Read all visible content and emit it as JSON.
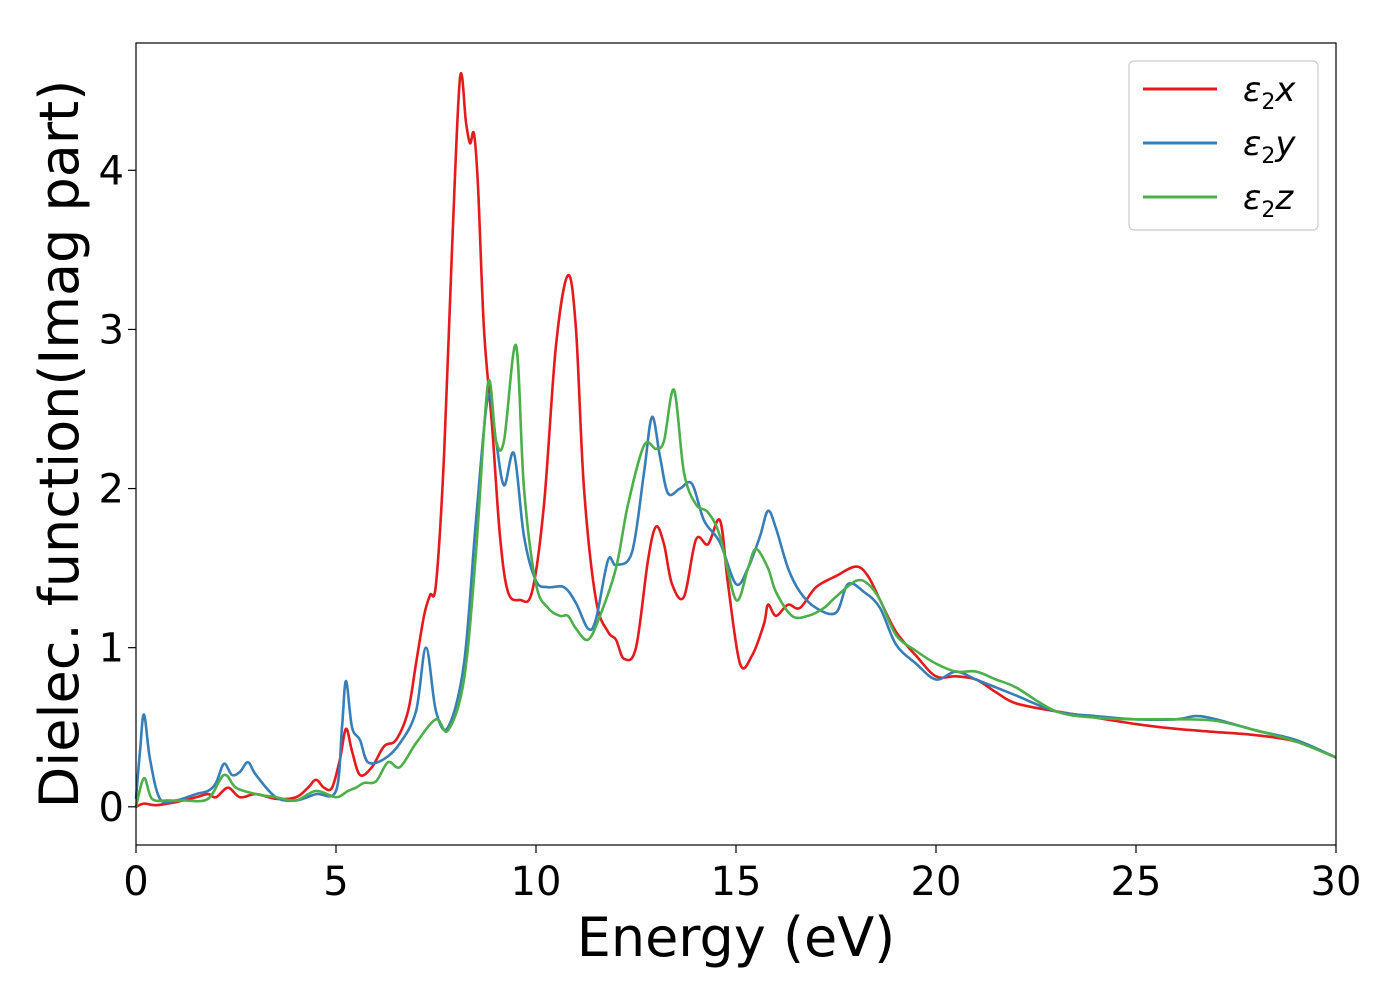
{
  "chart_data": {
    "type": "line",
    "xlabel": "Energy (eV)",
    "ylabel": "Dielec. function(Imag part)",
    "xlim": [
      0,
      30
    ],
    "ylim": [
      -0.24,
      4.8
    ],
    "xticks": [
      "0",
      "5",
      "10",
      "15",
      "20",
      "25",
      "30"
    ],
    "yticks": [
      "0",
      "1",
      "2",
      "3",
      "4"
    ],
    "grid": false,
    "legend_position": "top-right",
    "series": [
      {
        "name": "ε2x",
        "legend_main": "ε",
        "legend_sub": "2",
        "legend_tail": "x",
        "color": "#e41a1c",
        "points": [
          [
            0,
            0.0
          ],
          [
            0.2,
            0.02
          ],
          [
            0.5,
            0.01
          ],
          [
            1.0,
            0.03
          ],
          [
            1.5,
            0.06
          ],
          [
            1.8,
            0.08
          ],
          [
            2.0,
            0.06
          ],
          [
            2.3,
            0.12
          ],
          [
            2.6,
            0.06
          ],
          [
            3.0,
            0.08
          ],
          [
            3.5,
            0.05
          ],
          [
            4.0,
            0.06
          ],
          [
            4.3,
            0.12
          ],
          [
            4.5,
            0.17
          ],
          [
            4.7,
            0.12
          ],
          [
            4.9,
            0.12
          ],
          [
            5.1,
            0.3
          ],
          [
            5.25,
            0.49
          ],
          [
            5.4,
            0.35
          ],
          [
            5.6,
            0.2
          ],
          [
            5.9,
            0.25
          ],
          [
            6.2,
            0.38
          ],
          [
            6.5,
            0.42
          ],
          [
            6.8,
            0.6
          ],
          [
            7.0,
            0.9
          ],
          [
            7.2,
            1.2
          ],
          [
            7.35,
            1.33
          ],
          [
            7.5,
            1.4
          ],
          [
            7.7,
            2.2
          ],
          [
            7.9,
            3.5
          ],
          [
            8.1,
            4.58
          ],
          [
            8.25,
            4.3
          ],
          [
            8.35,
            4.17
          ],
          [
            8.45,
            4.23
          ],
          [
            8.55,
            3.9
          ],
          [
            8.7,
            3.0
          ],
          [
            8.9,
            2.4
          ],
          [
            9.1,
            1.7
          ],
          [
            9.3,
            1.35
          ],
          [
            9.6,
            1.3
          ],
          [
            9.9,
            1.35
          ],
          [
            10.2,
            1.9
          ],
          [
            10.5,
            2.9
          ],
          [
            10.8,
            3.34
          ],
          [
            11.0,
            3.0
          ],
          [
            11.2,
            2.0
          ],
          [
            11.5,
            1.3
          ],
          [
            11.8,
            1.1
          ],
          [
            12.0,
            1.05
          ],
          [
            12.2,
            0.93
          ],
          [
            12.5,
            1.0
          ],
          [
            12.8,
            1.55
          ],
          [
            13.0,
            1.76
          ],
          [
            13.2,
            1.65
          ],
          [
            13.4,
            1.4
          ],
          [
            13.7,
            1.32
          ],
          [
            14.0,
            1.68
          ],
          [
            14.3,
            1.65
          ],
          [
            14.6,
            1.8
          ],
          [
            14.8,
            1.4
          ],
          [
            15.1,
            0.9
          ],
          [
            15.4,
            0.95
          ],
          [
            15.7,
            1.15
          ],
          [
            15.8,
            1.27
          ],
          [
            16.0,
            1.2
          ],
          [
            16.3,
            1.27
          ],
          [
            16.6,
            1.25
          ],
          [
            17.0,
            1.38
          ],
          [
            17.5,
            1.45
          ],
          [
            18.0,
            1.51
          ],
          [
            18.3,
            1.45
          ],
          [
            18.6,
            1.3
          ],
          [
            19.0,
            1.1
          ],
          [
            19.5,
            0.95
          ],
          [
            20.0,
            0.82
          ],
          [
            20.5,
            0.82
          ],
          [
            21.0,
            0.8
          ],
          [
            21.5,
            0.72
          ],
          [
            22.0,
            0.65
          ],
          [
            23.0,
            0.6
          ],
          [
            24.0,
            0.56
          ],
          [
            25.0,
            0.52
          ],
          [
            26.0,
            0.49
          ],
          [
            27.0,
            0.47
          ],
          [
            28.0,
            0.45
          ],
          [
            29.0,
            0.41
          ],
          [
            30.0,
            0.31
          ]
        ]
      },
      {
        "name": "ε2y",
        "legend_main": "ε",
        "legend_sub": "2",
        "legend_tail": "y",
        "color": "#377eb8",
        "points": [
          [
            0,
            0.05
          ],
          [
            0.1,
            0.35
          ],
          [
            0.2,
            0.58
          ],
          [
            0.35,
            0.3
          ],
          [
            0.6,
            0.05
          ],
          [
            1.0,
            0.04
          ],
          [
            1.5,
            0.08
          ],
          [
            1.8,
            0.1
          ],
          [
            2.0,
            0.15
          ],
          [
            2.2,
            0.27
          ],
          [
            2.4,
            0.2
          ],
          [
            2.6,
            0.22
          ],
          [
            2.8,
            0.28
          ],
          [
            3.0,
            0.2
          ],
          [
            3.5,
            0.06
          ],
          [
            4.0,
            0.04
          ],
          [
            4.5,
            0.08
          ],
          [
            5.0,
            0.1
          ],
          [
            5.15,
            0.5
          ],
          [
            5.25,
            0.79
          ],
          [
            5.4,
            0.5
          ],
          [
            5.6,
            0.42
          ],
          [
            5.8,
            0.28
          ],
          [
            6.2,
            0.3
          ],
          [
            6.6,
            0.4
          ],
          [
            7.0,
            0.6
          ],
          [
            7.25,
            1.0
          ],
          [
            7.5,
            0.6
          ],
          [
            7.8,
            0.5
          ],
          [
            8.2,
            0.9
          ],
          [
            8.5,
            1.8
          ],
          [
            8.8,
            2.58
          ],
          [
            9.0,
            2.3
          ],
          [
            9.2,
            2.02
          ],
          [
            9.45,
            2.22
          ],
          [
            9.7,
            1.7
          ],
          [
            10.0,
            1.42
          ],
          [
            10.3,
            1.38
          ],
          [
            10.7,
            1.38
          ],
          [
            11.0,
            1.28
          ],
          [
            11.3,
            1.12
          ],
          [
            11.5,
            1.18
          ],
          [
            11.8,
            1.55
          ],
          [
            12.0,
            1.52
          ],
          [
            12.4,
            1.6
          ],
          [
            12.7,
            2.1
          ],
          [
            12.9,
            2.45
          ],
          [
            13.1,
            2.2
          ],
          [
            13.3,
            1.97
          ],
          [
            13.6,
            2.0
          ],
          [
            13.9,
            2.03
          ],
          [
            14.2,
            1.8
          ],
          [
            14.6,
            1.66
          ],
          [
            15.0,
            1.4
          ],
          [
            15.3,
            1.5
          ],
          [
            15.6,
            1.7
          ],
          [
            15.8,
            1.86
          ],
          [
            16.0,
            1.75
          ],
          [
            16.3,
            1.5
          ],
          [
            16.6,
            1.35
          ],
          [
            17.0,
            1.25
          ],
          [
            17.5,
            1.22
          ],
          [
            17.8,
            1.4
          ],
          [
            18.2,
            1.35
          ],
          [
            18.6,
            1.25
          ],
          [
            19.0,
            1.02
          ],
          [
            19.5,
            0.9
          ],
          [
            20.0,
            0.8
          ],
          [
            20.5,
            0.85
          ],
          [
            21.0,
            0.8
          ],
          [
            21.5,
            0.75
          ],
          [
            22.0,
            0.7
          ],
          [
            23.0,
            0.6
          ],
          [
            24.0,
            0.57
          ],
          [
            25.0,
            0.55
          ],
          [
            26.0,
            0.55
          ],
          [
            26.5,
            0.57
          ],
          [
            27.0,
            0.55
          ],
          [
            28.0,
            0.48
          ],
          [
            29.0,
            0.42
          ],
          [
            30.0,
            0.31
          ]
        ]
      },
      {
        "name": "ε2z",
        "legend_main": "ε",
        "legend_sub": "2",
        "legend_tail": "z",
        "color": "#4daf4a",
        "points": [
          [
            0,
            0.0
          ],
          [
            0.2,
            0.18
          ],
          [
            0.4,
            0.05
          ],
          [
            0.8,
            0.04
          ],
          [
            1.2,
            0.04
          ],
          [
            1.8,
            0.05
          ],
          [
            2.2,
            0.2
          ],
          [
            2.5,
            0.12
          ],
          [
            3.0,
            0.08
          ],
          [
            3.5,
            0.06
          ],
          [
            4.0,
            0.04
          ],
          [
            4.5,
            0.1
          ],
          [
            5.0,
            0.06
          ],
          [
            5.3,
            0.1
          ],
          [
            5.5,
            0.12
          ],
          [
            5.7,
            0.15
          ],
          [
            6.0,
            0.16
          ],
          [
            6.3,
            0.28
          ],
          [
            6.6,
            0.25
          ],
          [
            7.0,
            0.4
          ],
          [
            7.5,
            0.55
          ],
          [
            7.8,
            0.48
          ],
          [
            8.2,
            0.8
          ],
          [
            8.5,
            1.6
          ],
          [
            8.8,
            2.66
          ],
          [
            9.0,
            2.3
          ],
          [
            9.2,
            2.3
          ],
          [
            9.5,
            2.9
          ],
          [
            9.7,
            2.0
          ],
          [
            10.0,
            1.4
          ],
          [
            10.3,
            1.25
          ],
          [
            10.6,
            1.2
          ],
          [
            10.8,
            1.2
          ],
          [
            11.0,
            1.12
          ],
          [
            11.3,
            1.05
          ],
          [
            11.6,
            1.2
          ],
          [
            12.0,
            1.5
          ],
          [
            12.3,
            1.9
          ],
          [
            12.7,
            2.27
          ],
          [
            13.0,
            2.25
          ],
          [
            13.2,
            2.3
          ],
          [
            13.45,
            2.62
          ],
          [
            13.7,
            2.1
          ],
          [
            14.0,
            1.9
          ],
          [
            14.3,
            1.85
          ],
          [
            14.6,
            1.7
          ],
          [
            15.0,
            1.3
          ],
          [
            15.3,
            1.5
          ],
          [
            15.5,
            1.62
          ],
          [
            15.8,
            1.5
          ],
          [
            16.0,
            1.35
          ],
          [
            16.4,
            1.2
          ],
          [
            16.8,
            1.2
          ],
          [
            17.2,
            1.25
          ],
          [
            17.5,
            1.32
          ],
          [
            18.0,
            1.42
          ],
          [
            18.3,
            1.4
          ],
          [
            18.6,
            1.3
          ],
          [
            19.0,
            1.08
          ],
          [
            19.5,
            0.98
          ],
          [
            20.0,
            0.9
          ],
          [
            20.5,
            0.85
          ],
          [
            21.0,
            0.85
          ],
          [
            21.5,
            0.8
          ],
          [
            22.0,
            0.75
          ],
          [
            23.0,
            0.6
          ],
          [
            24.0,
            0.56
          ],
          [
            25.0,
            0.55
          ],
          [
            26.0,
            0.55
          ],
          [
            27.0,
            0.54
          ],
          [
            28.0,
            0.48
          ],
          [
            29.0,
            0.41
          ],
          [
            30.0,
            0.31
          ]
        ]
      }
    ]
  }
}
